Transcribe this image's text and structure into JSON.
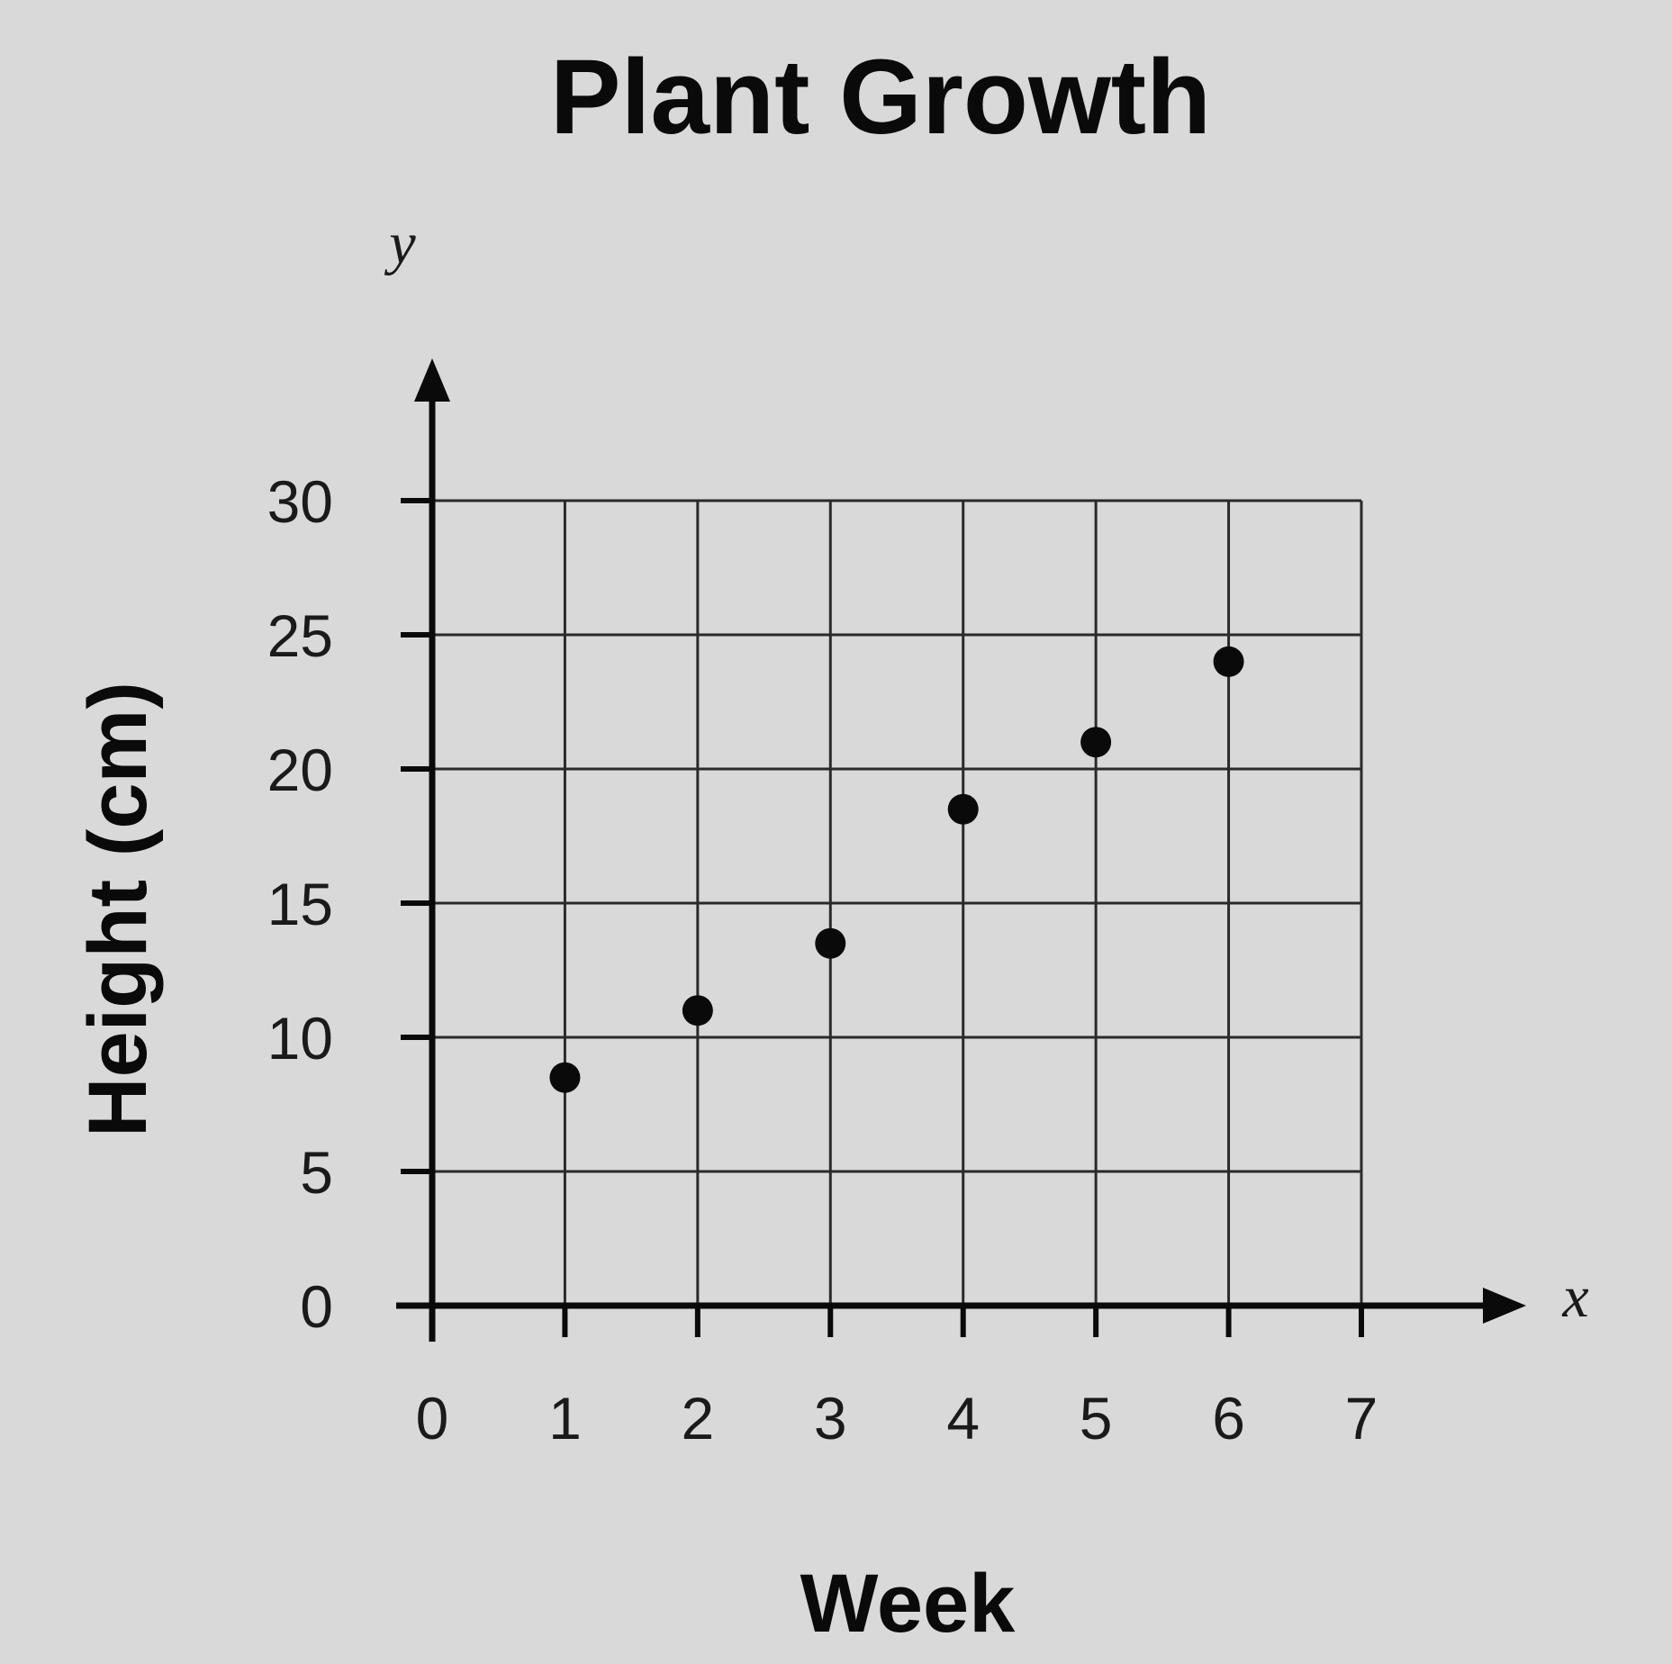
{
  "chart_data": {
    "type": "scatter",
    "title": "Plant Growth",
    "xlabel": "Week",
    "ylabel": "Height (cm)",
    "x_axis_letter": "x",
    "y_axis_letter": "y",
    "xlim": [
      0,
      7
    ],
    "ylim": [
      0,
      30
    ],
    "x_ticks": [
      "0",
      "1",
      "2",
      "3",
      "4",
      "5",
      "6",
      "7"
    ],
    "y_ticks": [
      "0",
      "5",
      "10",
      "15",
      "20",
      "25",
      "30"
    ],
    "grid": true,
    "series": [
      {
        "x": [
          1,
          2,
          3,
          4,
          5,
          6
        ],
        "y": [
          8.5,
          11,
          13.5,
          18.5,
          21,
          24
        ]
      }
    ],
    "colors": {
      "background": "#d9d9d9",
      "ink": "#0a0a0a",
      "grid": "#2a2a2a"
    }
  }
}
